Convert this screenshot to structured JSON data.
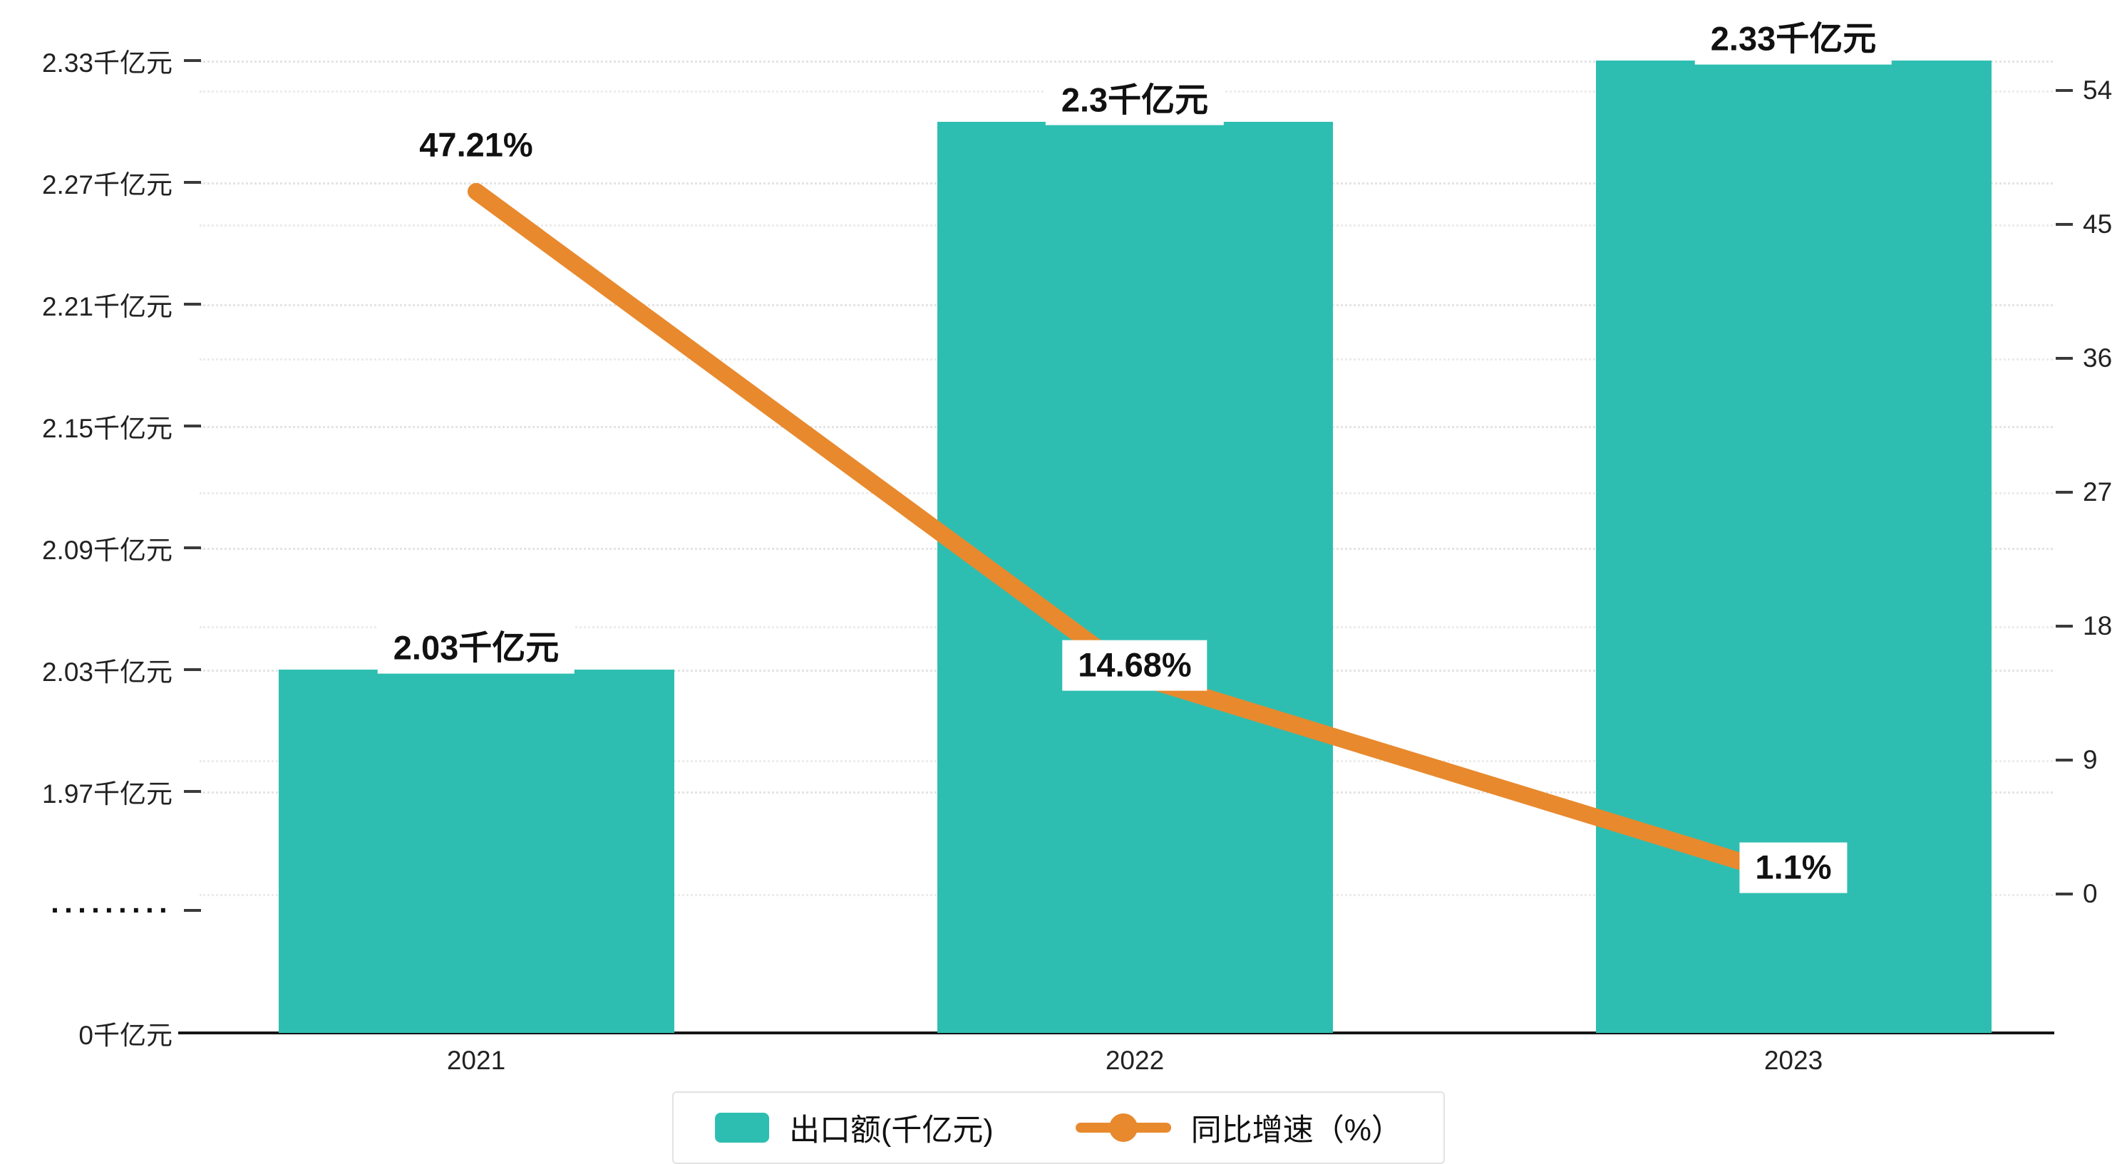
{
  "chart_data": {
    "type": "bar",
    "subtype": "bar+line-combo",
    "categories": [
      "2021",
      "2022",
      "2023"
    ],
    "series": [
      {
        "name": "出口额(千亿元)",
        "type": "bar",
        "values": [
          2.03,
          2.3,
          2.33
        ],
        "labels": [
          "2.03千亿元",
          "2.3千亿元",
          "2.33千亿元"
        ],
        "color": "#2ebeb1",
        "axis": "left"
      },
      {
        "name": "同比增速（%）",
        "type": "line",
        "values": [
          47.21,
          14.68,
          1.1
        ],
        "labels": [
          "47.21%",
          "14.68%",
          "1.1%"
        ],
        "color": "#e8892d",
        "axis": "right"
      }
    ],
    "left_axis": {
      "unit": "千亿元",
      "axis_break": true,
      "ticks": [
        {
          "value": 2.33,
          "label": "2.33千亿元"
        },
        {
          "value": 2.27,
          "label": "2.27千亿元"
        },
        {
          "value": 2.21,
          "label": "2.21千亿元"
        },
        {
          "value": 2.15,
          "label": "2.15千亿元"
        },
        {
          "value": 2.09,
          "label": "2.09千亿元"
        },
        {
          "value": 2.03,
          "label": "2.03千亿元"
        },
        {
          "value": 1.97,
          "label": "1.97千亿元"
        }
      ],
      "break_label": "·········",
      "zero_label": "0千亿元"
    },
    "right_axis": {
      "unit": "%",
      "ticks": [
        54,
        45,
        36,
        27,
        18,
        9,
        0
      ],
      "range": [
        0,
        54
      ]
    },
    "legend": [
      {
        "label": "出口额(千亿元)",
        "marker": "square"
      },
      {
        "label": "同比增速（%）",
        "marker": "line-dot"
      }
    ],
    "grid": "dotted-horizontal",
    "legend_position": "bottom-center",
    "colors": {
      "bar": "#2ebeb1",
      "line": "#e8892d",
      "grid": "#e4e4e4",
      "axis": "#151515"
    }
  }
}
